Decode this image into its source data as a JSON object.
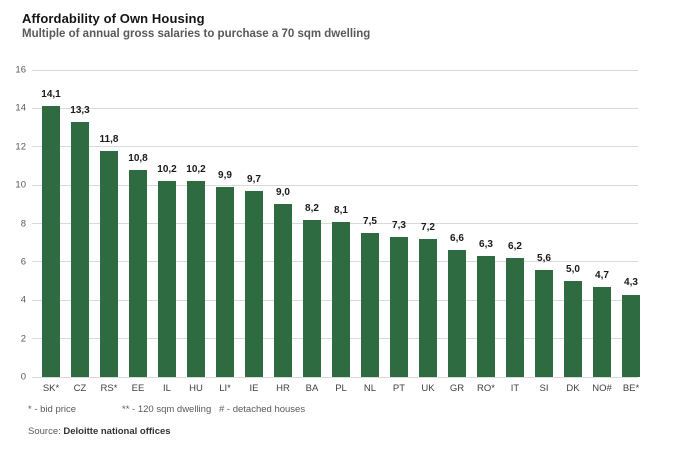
{
  "header": {
    "title": "Affordability of Own Housing",
    "subtitle": "Multiple of annual gross salaries to purchase a 70 sqm dwelling"
  },
  "chart_data": {
    "type": "bar",
    "title": "Affordability of Own Housing",
    "subtitle": "Multiple of annual gross salaries to purchase a 70 sqm dwelling",
    "categories": [
      "SK*",
      "CZ",
      "RS*",
      "EE",
      "IL",
      "HU",
      "LI*",
      "IE",
      "HR",
      "BA",
      "PL",
      "NL",
      "PT",
      "UK",
      "GR",
      "RO*",
      "IT",
      "SI",
      "DK",
      "NO#",
      "BE*"
    ],
    "values": [
      14.1,
      13.3,
      11.8,
      10.8,
      10.2,
      10.2,
      9.9,
      9.7,
      9.0,
      8.2,
      8.1,
      7.5,
      7.3,
      7.2,
      6.6,
      6.3,
      6.2,
      5.6,
      5.0,
      4.7,
      4.3
    ],
    "value_labels": [
      "14,1",
      "13,3",
      "11,8",
      "10,8",
      "10,2",
      "10,2",
      "9,9",
      "9,7",
      "9,0",
      "8,2",
      "8,1",
      "7,5",
      "7,3",
      "7,2",
      "6,6",
      "6,3",
      "6,2",
      "5,6",
      "5,0",
      "4,7",
      "4,3"
    ],
    "xlabel": "",
    "ylabel": "",
    "ylim": [
      0,
      16
    ],
    "y_ticks": [
      0,
      2,
      4,
      6,
      8,
      10,
      12,
      14,
      16
    ],
    "grid": true,
    "legend": "none",
    "bar_color": "#2e6b40",
    "gridline_color": "#d9d9d9",
    "decimal_separator": ","
  },
  "footnotes": [
    "* - bid price",
    "** - 120 sqm dwelling",
    "# - detached houses"
  ],
  "source": {
    "prefix": "Source: ",
    "name": "Deloitte national offices"
  }
}
